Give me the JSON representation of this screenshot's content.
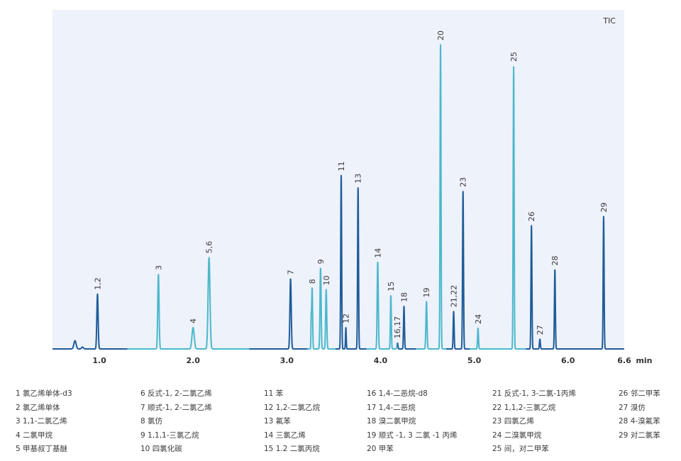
{
  "chart_data": {
    "type": "line",
    "corner_label": "TIC",
    "xlabel": "min",
    "xlim": [
      0.5,
      6.6
    ],
    "ylim": [
      0,
      100
    ],
    "x_ticks": [
      "1.0",
      "2.0",
      "3.0",
      "4.0",
      "5.0",
      "6.0",
      "6.6"
    ],
    "x_tick_values": [
      1.0,
      2.0,
      3.0,
      4.0,
      5.0,
      6.0,
      6.6
    ],
    "colors": {
      "dark": "#1f5c99",
      "light": "#4bb8cc",
      "background": "#eef2fa"
    },
    "segment_colors": [
      {
        "from": 0.5,
        "to": 1.3,
        "color": "#1f5c99"
      },
      {
        "from": 1.3,
        "to": 2.6,
        "color": "#4bb8cc"
      },
      {
        "from": 2.6,
        "to": 3.22,
        "color": "#1f5c99"
      },
      {
        "from": 3.22,
        "to": 3.52,
        "color": "#4bb8cc"
      },
      {
        "from": 3.52,
        "to": 3.85,
        "color": "#1f5c99"
      },
      {
        "from": 3.85,
        "to": 4.18,
        "color": "#4bb8cc"
      },
      {
        "from": 4.18,
        "to": 4.38,
        "color": "#1f5c99"
      },
      {
        "from": 4.38,
        "to": 4.7,
        "color": "#4bb8cc"
      },
      {
        "from": 4.7,
        "to": 4.95,
        "color": "#1f5c99"
      },
      {
        "from": 4.95,
        "to": 5.55,
        "color": "#4bb8cc"
      },
      {
        "from": 5.55,
        "to": 6.6,
        "color": "#1f5c99"
      }
    ],
    "peaks": [
      {
        "x": 0.74,
        "y": 2.7,
        "w": 0.012
      },
      {
        "x": 0.82,
        "y": 0.6,
        "w": 0.01
      },
      {
        "x": 0.98,
        "y": 18.0,
        "label": "1,2",
        "w": 0.007
      },
      {
        "x": 1.63,
        "y": 24.5,
        "label": "3",
        "w": 0.007
      },
      {
        "x": 2.0,
        "y": 7.0,
        "label": "4",
        "w": 0.012
      },
      {
        "x": 2.17,
        "y": 30.0,
        "label": "5,6",
        "w": 0.01
      },
      {
        "x": 3.04,
        "y": 23.0,
        "label": "7",
        "w": 0.007
      },
      {
        "x": 3.26,
        "y": 8.5,
        "w": 0.003
      },
      {
        "x": 3.27,
        "y": 20.0,
        "label": "8",
        "w": 0.005
      },
      {
        "x": 3.36,
        "y": 26.5,
        "label": "9",
        "w": 0.006
      },
      {
        "x": 3.42,
        "y": 19.5,
        "label": "10",
        "w": 0.006
      },
      {
        "x": 3.58,
        "y": 57.0,
        "label": "11",
        "w": 0.005
      },
      {
        "x": 3.63,
        "y": 7.0,
        "label": "12",
        "w": 0.004
      },
      {
        "x": 3.76,
        "y": 53.0,
        "label": "13",
        "w": 0.005
      },
      {
        "x": 3.97,
        "y": 28.5,
        "label": "14",
        "w": 0.006
      },
      {
        "x": 4.11,
        "y": 17.5,
        "label": "15",
        "w": 0.005
      },
      {
        "x": 4.18,
        "y": 2.0,
        "label": "16,17",
        "w": 0.005
      },
      {
        "x": 4.25,
        "y": 14.0,
        "label": "18",
        "w": 0.005
      },
      {
        "x": 4.49,
        "y": 15.5,
        "label": "19",
        "w": 0.006
      },
      {
        "x": 4.64,
        "y": 100.0,
        "label": "20",
        "w": 0.005
      },
      {
        "x": 4.78,
        "y": 12.3,
        "label": "21,22",
        "w": 0.005
      },
      {
        "x": 4.88,
        "y": 51.8,
        "label": "23",
        "w": 0.005
      },
      {
        "x": 5.04,
        "y": 6.8,
        "label": "24",
        "w": 0.005
      },
      {
        "x": 5.42,
        "y": 93.0,
        "label": "25",
        "w": 0.005
      },
      {
        "x": 5.61,
        "y": 40.5,
        "label": "26",
        "w": 0.005
      },
      {
        "x": 5.7,
        "y": 3.2,
        "label": "27",
        "w": 0.005
      },
      {
        "x": 5.86,
        "y": 26.0,
        "label": "28",
        "w": 0.005
      },
      {
        "x": 6.38,
        "y": 43.5,
        "label": "29",
        "w": 0.005
      }
    ]
  },
  "legend": [
    "1 氯乙烯单体-d3",
    "2 氯乙烯单体",
    "3 1,1-二氯乙烯",
    "4 二氯甲烷",
    "5 甲基叔丁基醚",
    "6 反式-1, 2-二氯乙烯",
    "7 顺式-1, 2-二氯乙烯",
    "8 氯仿",
    "9 1,1,1-三氯乙烷",
    "10 四氯化碳",
    "11 苯",
    "12 1,2-二氯乙烷",
    "13 氟苯",
    "14 三氯乙烯",
    "15 1.2 二氯丙烷",
    "16 1,4-二恶烷-d8",
    "17 1,4-二恶烷",
    "18 溴二氯甲烷",
    "19 顺式 -1, 3 二氯 -1 丙烯",
    "20 甲苯",
    "21 反式-1, 3-二氯-1丙烯",
    "22 1,1,2-三氯乙烷",
    "23 四氯乙烯",
    "24 二溴氯甲烷",
    "25 间，对二甲苯",
    "26 邻二甲苯",
    "27 溴仿",
    "28 4-溴氟苯",
    "29 对二氯苯"
  ]
}
